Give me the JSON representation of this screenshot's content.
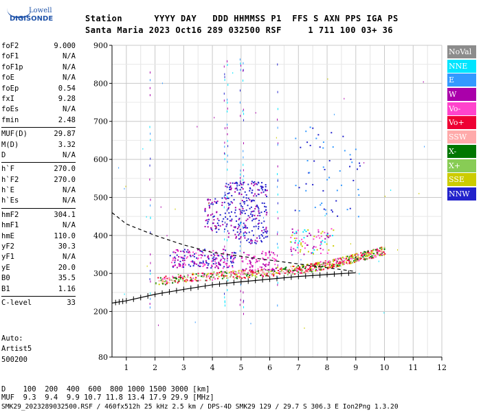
{
  "logo": {
    "line1": "Lowell",
    "line2": "DIGISONDE"
  },
  "header": {
    "line1": "Station      YYYY DAY   DDD HHMMSS P1  FFS S AXN PPS IGA PS",
    "line2": "Santa Maria 2023 Oct16 289 032500 RSF     1 711 100 03+ 36"
  },
  "params": {
    "group1": [
      {
        "key": "foF2",
        "value": "9.000"
      },
      {
        "key": "foF1",
        "value": "N/A"
      },
      {
        "key": "foF1p",
        "value": "N/A"
      },
      {
        "key": "foE",
        "value": "N/A"
      },
      {
        "key": "foEp",
        "value": "0.54"
      },
      {
        "key": "fxI",
        "value": "9.28"
      },
      {
        "key": "foEs",
        "value": "N/A"
      },
      {
        "key": "fmin",
        "value": "2.48"
      }
    ],
    "group2": [
      {
        "key": "MUF(D)",
        "value": "29.87"
      },
      {
        "key": "M(D)",
        "value": "3.32"
      },
      {
        "key": "D",
        "value": "N/A"
      }
    ],
    "group3": [
      {
        "key": "h`F",
        "value": "270.0"
      },
      {
        "key": "h`F2",
        "value": "270.0"
      },
      {
        "key": "h`E",
        "value": "N/A"
      },
      {
        "key": "h`Es",
        "value": "N/A"
      }
    ],
    "group4": [
      {
        "key": "hmF2",
        "value": "304.1"
      },
      {
        "key": "hmF1",
        "value": "N/A"
      },
      {
        "key": "hmE",
        "value": "110.0"
      },
      {
        "key": "yF2",
        "value": "30.3"
      },
      {
        "key": "yF1",
        "value": "N/A"
      },
      {
        "key": "yE",
        "value": "20.0"
      },
      {
        "key": "B0",
        "value": "35.5"
      },
      {
        "key": "B1",
        "value": "1.16"
      }
    ],
    "group5": [
      {
        "key": "C-level",
        "value": "33"
      }
    ]
  },
  "auto": {
    "line1": "Auto:",
    "line2": "Artist5",
    "line3": "500200"
  },
  "legend": [
    {
      "label": "NoVal",
      "color": "#8c8c8c"
    },
    {
      "label": "NNE",
      "color": "#00e5ff"
    },
    {
      "label": "E",
      "color": "#3399ff"
    },
    {
      "label": "W",
      "color": "#aa00aa"
    },
    {
      "label": "Vo-",
      "color": "#ff44cc"
    },
    {
      "label": "Vo+",
      "color": "#ee0033"
    },
    {
      "label": "SSW",
      "color": "#ffaaaa"
    },
    {
      "label": "X-",
      "color": "#007700"
    },
    {
      "label": "X+",
      "color": "#88cc55"
    },
    {
      "label": "SSE",
      "color": "#cccc00"
    },
    {
      "label": "NNW",
      "color": "#2222cc"
    }
  ],
  "bottom": {
    "line1": "D    100  200  400  600  800 1000 1500 3000 [km]",
    "line2": "MUF  9.3  9.4  9.9 10.7 11.8 13.4 17.9 29.9 [MHz]",
    "line3": "SMK29_2023289032500.RSF / 460fx512h 25 kHz 2.5 km / DPS-4D SMK29 129 / 29.7 S 306.3 E Ion2Png 1.3.20"
  },
  "chart_data": {
    "type": "scatter",
    "x_ticks": [
      "1",
      "2",
      "3",
      "4",
      "5",
      "6",
      "7",
      "8",
      "9",
      "10",
      "11",
      "12"
    ],
    "y_ticks": [
      "80",
      "200",
      "300",
      "400",
      "500",
      "600",
      "700",
      "800",
      "900"
    ],
    "x_range": [
      0.5,
      12
    ],
    "y_range": [
      80,
      900
    ],
    "grid": true,
    "trace_virtual_height": {
      "x": [
        0.5,
        1.0,
        2.0,
        3.0,
        4.0,
        5.0,
        6.0,
        7.0,
        8.0,
        9.0
      ],
      "y": [
        222,
        228,
        245,
        258,
        270,
        278,
        285,
        292,
        297,
        302
      ]
    },
    "profile_true_height": {
      "x": [
        0.5,
        1.0,
        2.0,
        3.0,
        3.5,
        4.0,
        5.0,
        6.0,
        7.0,
        8.0,
        9.0
      ],
      "y": [
        460,
        430,
        400,
        375,
        365,
        355,
        345,
        335,
        325,
        315,
        305
      ]
    },
    "echo_o_trace": {
      "x": [
        2.0,
        3.0,
        4.0,
        5.0,
        6.0,
        7.0,
        7.5,
        8.0,
        8.5,
        9.0,
        9.5,
        10.0
      ],
      "y": [
        280,
        290,
        295,
        300,
        305,
        312,
        318,
        325,
        333,
        343,
        352,
        362
      ]
    }
  }
}
